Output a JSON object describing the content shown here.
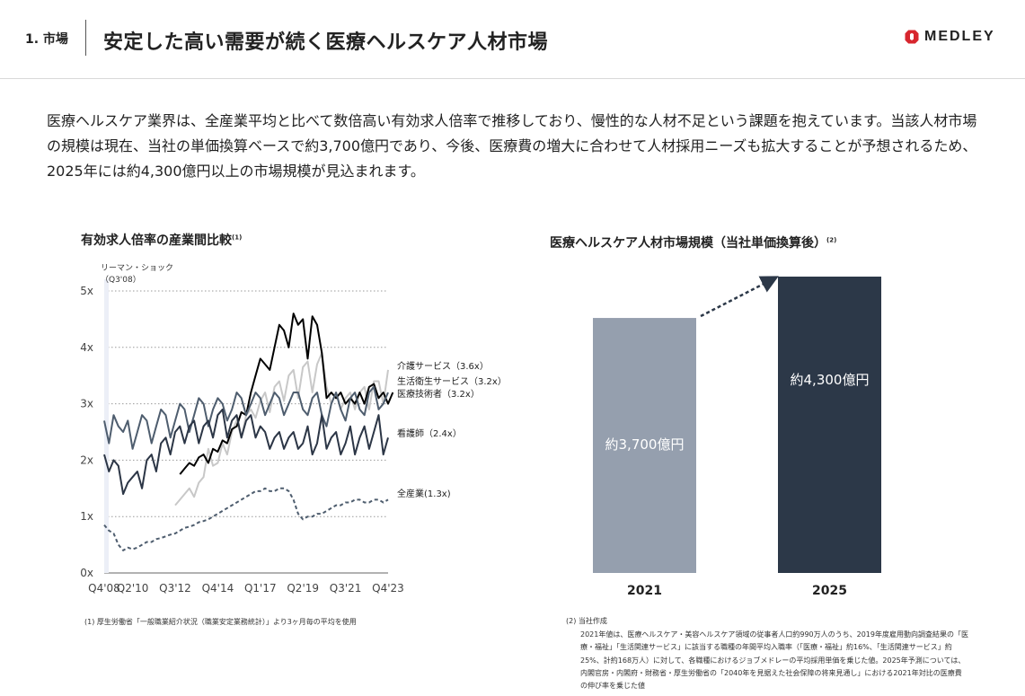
{
  "header": {
    "section": "1. 市場",
    "title": "安定した高い需要が続く医療ヘルスケア人材市場",
    "logo_text": "MEDLEY",
    "logo_color": "#d7262e"
  },
  "description": "医療ヘルスケア業界は、全産業平均と比べて数倍高い有効求人倍率で推移しており、慢性的な人材不足という課題を抱えています。当該人材市場の規模は現在、当社の単価換算ベースで約3,700億円であり、今後、医療費の増大に合わせて人材採用ニーズも拡大することが予想されるため、2025年には約4,300億円以上の市場規模が見込まれます。",
  "left_chart": {
    "title": "有効求人倍率の産業間比較",
    "title_note": "(1)",
    "annotation_line1": "リーマン・ショック",
    "annotation_line2": "（Q3'08）",
    "note": "(1) 厚生労働省「一般職業紹介状況（職業安定業務統計）」より3ヶ月毎の平均を使用"
  },
  "right_chart": {
    "title": "医療ヘルスケア人材市場規模（当社単価換算後）",
    "title_note": "(2)",
    "note_head": "(2) 当社作成",
    "note_body": "2021年値は、医療ヘルスケア・美容ヘルスケア領域の従事者人口約990万人のうち、2019年度雇用動向調査結果の「医療・福祉」「生活関連サービス」に該当する職種の年間平均入職率（「医療・福祉」約16%、「生活関連サービス」約25%、計約168万人）に対して、各職種におけるジョブメドレーの平均採用単価を乗じた値。2025年予測については、内閣官房・内閣府・財務省・厚生労働省の「2040年を見据えた社会保障の将来見通し」における2021年対比の医療費の伸び率を乗じた値"
  },
  "chart_data": [
    {
      "type": "line",
      "title": "有効求人倍率の産業間比較",
      "y_ticks": [
        "0x",
        "1x",
        "2x",
        "3x",
        "4x",
        "5x"
      ],
      "x_ticks": [
        "Q4'08",
        "Q2'10",
        "Q3'12",
        "Q4'14",
        "Q1'17",
        "Q2'19",
        "Q3'21",
        "Q4'23"
      ],
      "ylim": [
        0,
        5
      ],
      "xlim": [
        0,
        60
      ],
      "x_tick_positions": [
        0,
        6,
        15,
        24,
        33,
        42,
        51,
        60
      ],
      "grid": "horizontal dotted",
      "series": [
        {
          "name": "介護サービス",
          "label": "介護サービス（3.6x）",
          "color": "#c8c8c8",
          "dash": "",
          "width": 2,
          "start": 15,
          "values": [
            1.2,
            1.3,
            1.4,
            1.5,
            1.35,
            1.6,
            1.7,
            2.2,
            1.9,
            1.95,
            2.3,
            2.1,
            2.5,
            2.7,
            2.4,
            2.8,
            2.9,
            2.75,
            3.05,
            3.2,
            2.85,
            3.3,
            3.4,
            3.05,
            3.5,
            3.6,
            3.1,
            3.65,
            3.75,
            3.2,
            3.7,
            3.9,
            3.3,
            3.0,
            3.2,
            2.9,
            3.1,
            3.2,
            2.9,
            3.2,
            3.3,
            2.9,
            3.4,
            3.4,
            3.0,
            3.6
          ]
        },
        {
          "name": "生活衛生サービス",
          "label": "生活衛生サービス（3.2x）",
          "color": "#000000",
          "dash": "",
          "width": 2,
          "start": 16,
          "values": [
            1.75,
            1.85,
            1.95,
            1.9,
            2.05,
            2.1,
            1.95,
            2.2,
            2.15,
            2.35,
            2.3,
            2.55,
            2.6,
            2.85,
            2.8,
            3.2,
            3.5,
            3.8,
            3.7,
            3.6,
            4.0,
            4.4,
            4.3,
            4.0,
            4.6,
            4.4,
            4.5,
            3.8,
            4.55,
            4.4,
            3.9,
            3.1,
            3.2,
            3.1,
            3.2,
            3.0,
            3.1,
            3.0,
            3.2,
            3.0,
            3.3,
            3.35,
            3.1,
            3.2,
            3.0,
            3.2
          ]
        },
        {
          "name": "医療技術者",
          "label": "医療技術者（3.2x）",
          "color": "#4e5d6e",
          "dash": "",
          "width": 2,
          "start": 0,
          "values": [
            2.7,
            2.3,
            2.8,
            2.6,
            2.5,
            2.7,
            2.2,
            2.5,
            2.8,
            2.7,
            2.3,
            2.6,
            2.9,
            2.8,
            2.4,
            2.7,
            3.0,
            2.9,
            2.5,
            2.8,
            3.1,
            3.0,
            2.6,
            2.9,
            3.1,
            3.0,
            2.7,
            2.9,
            3.2,
            3.1,
            2.8,
            3.0,
            3.2,
            3.1,
            2.8,
            3.0,
            3.2,
            3.1,
            2.8,
            3.0,
            3.2,
            3.2,
            2.9,
            2.8,
            3.1,
            3.2,
            2.8,
            2.6,
            3.0,
            3.2,
            2.9,
            2.7,
            3.1,
            3.2,
            2.9,
            2.8,
            3.2,
            3.3,
            2.9,
            3.0,
            3.2
          ]
        },
        {
          "name": "看護師",
          "label": "看護師（2.4x）",
          "color": "#2c3646",
          "dash": "",
          "width": 2,
          "start": 0,
          "values": [
            2.1,
            1.8,
            2.0,
            1.9,
            1.4,
            1.6,
            1.7,
            1.8,
            1.5,
            2.0,
            2.1,
            1.8,
            2.3,
            2.4,
            2.1,
            2.5,
            2.6,
            2.3,
            2.6,
            2.7,
            2.3,
            2.6,
            2.7,
            2.4,
            2.8,
            2.9,
            2.4,
            2.7,
            2.8,
            2.4,
            2.7,
            2.8,
            2.4,
            2.6,
            2.5,
            2.2,
            2.4,
            2.5,
            2.2,
            2.4,
            2.5,
            2.2,
            2.3,
            2.6,
            2.1,
            2.3,
            2.8,
            2.2,
            2.4,
            2.5,
            2.1,
            2.3,
            2.6,
            2.1,
            2.4,
            2.6,
            2.2,
            2.5,
            2.8,
            2.1,
            2.4
          ]
        },
        {
          "name": "全産業",
          "label": "全産業(1.3x)",
          "color": "#4e5d6e",
          "dash": "4,3",
          "width": 2,
          "start": 0,
          "values": [
            0.85,
            0.75,
            0.7,
            0.5,
            0.4,
            0.45,
            0.42,
            0.45,
            0.5,
            0.55,
            0.55,
            0.6,
            0.62,
            0.65,
            0.68,
            0.7,
            0.75,
            0.8,
            0.82,
            0.85,
            0.9,
            0.92,
            0.95,
            1.0,
            1.05,
            1.1,
            1.15,
            1.2,
            1.25,
            1.3,
            1.35,
            1.4,
            1.45,
            1.45,
            1.5,
            1.45,
            1.45,
            1.5,
            1.5,
            1.45,
            1.3,
            1.05,
            0.95,
            1.0,
            1.0,
            1.05,
            1.05,
            1.1,
            1.15,
            1.2,
            1.2,
            1.25,
            1.25,
            1.3,
            1.3,
            1.25,
            1.25,
            1.3,
            1.3,
            1.25,
            1.3
          ]
        }
      ],
      "annotation": {
        "x": 0,
        "text": "リーマン・ショック",
        "text2": "（Q3'08）"
      }
    },
    {
      "type": "bar",
      "title": "医療ヘルスケア人材市場規模（当社単価換算後）",
      "categories": [
        "2021",
        "2025"
      ],
      "values": [
        3700,
        4300
      ],
      "labels": [
        "約3,700億円",
        "約4,300億円"
      ],
      "colors": [
        "#959fae",
        "#2c3848"
      ],
      "ylim": [
        0,
        4300
      ]
    }
  ]
}
